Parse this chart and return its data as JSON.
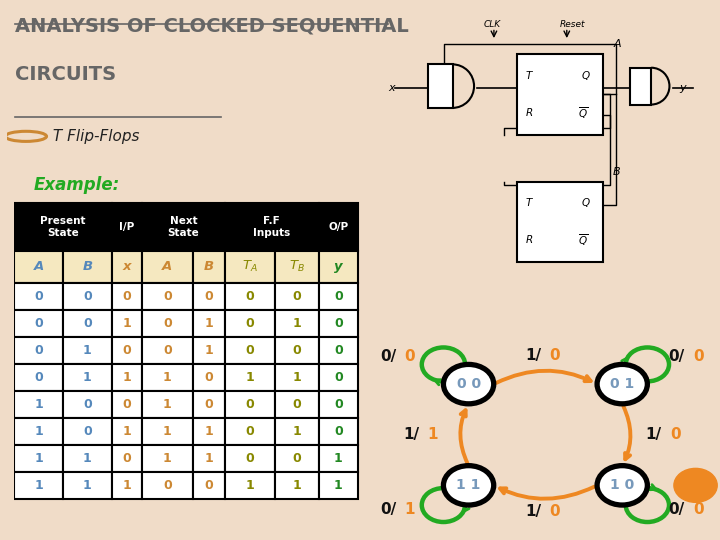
{
  "title_line1": "ANALYSIS OF CLOCKED SEQUENTIAL",
  "title_line2": "CIRCUITS",
  "title_color": "#666666",
  "slide_bg": "#f0dcc8",
  "bullet_text": " T Flip-Flops",
  "bullet_color": "#cc8833",
  "example_text": "Example:",
  "example_color": "#22aa22",
  "table_data": [
    [
      0,
      0,
      0,
      0,
      0,
      0,
      0,
      0
    ],
    [
      0,
      0,
      1,
      0,
      1,
      0,
      1,
      0
    ],
    [
      0,
      1,
      0,
      0,
      1,
      0,
      0,
      0
    ],
    [
      0,
      1,
      1,
      1,
      0,
      1,
      1,
      0
    ],
    [
      1,
      0,
      0,
      1,
      0,
      0,
      0,
      0
    ],
    [
      1,
      0,
      1,
      1,
      1,
      0,
      1,
      0
    ],
    [
      1,
      1,
      0,
      1,
      1,
      0,
      0,
      1
    ],
    [
      1,
      1,
      1,
      0,
      0,
      1,
      1,
      1
    ]
  ],
  "col_A_color": "#5588bb",
  "col_B_color": "#5588bb",
  "col_x_color": "#cc8833",
  "col_nA_color": "#cc8833",
  "col_nB_color": "#cc8833",
  "col_TA_color": "#888800",
  "col_TB_color": "#888800",
  "col_y_color": "#228822",
  "circuit_bg": "#88ee44",
  "green": "#22aa22",
  "orange": "#ee8822",
  "black": "#111111",
  "node_text_color": "#7799bb",
  "white": "#ffffff"
}
